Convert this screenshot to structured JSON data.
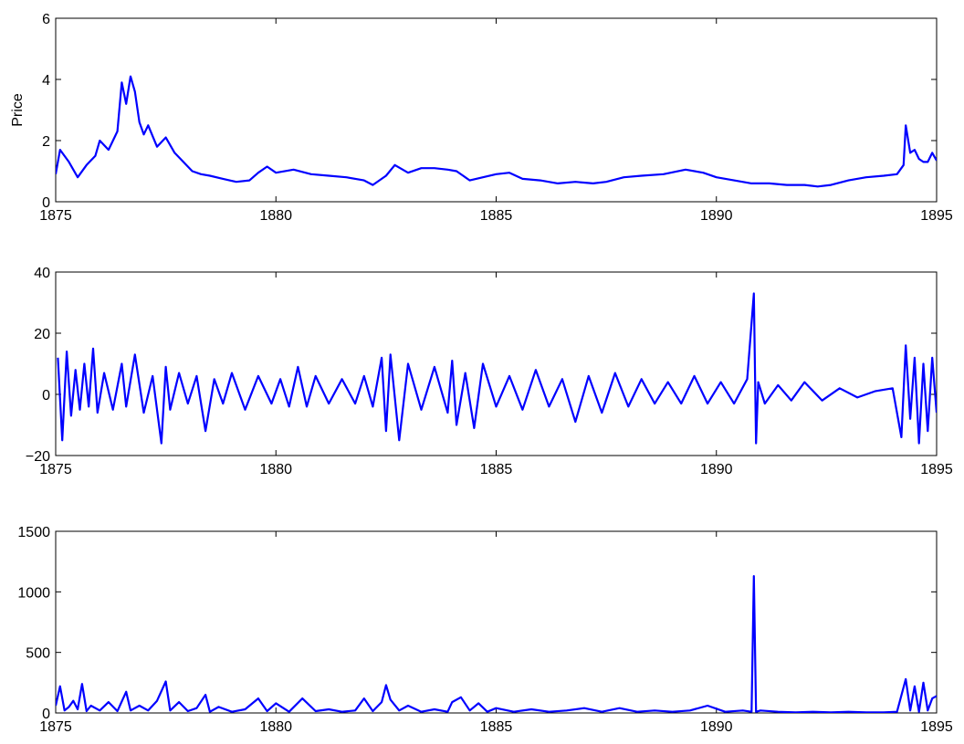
{
  "chart_data": [
    {
      "type": "line",
      "title": "",
      "xlabel": "",
      "ylabel": "Price",
      "xlim": [
        1875,
        1895
      ],
      "ylim": [
        0,
        6
      ],
      "xticks": [
        1875,
        1880,
        1885,
        1890,
        1895
      ],
      "yticks": [
        0,
        2,
        4,
        6
      ],
      "xtick_labels": [
        "1875",
        "1880",
        "1885",
        "1890",
        "1895"
      ],
      "ytick_labels": [
        "0",
        "2",
        "4",
        "6"
      ],
      "grid": false,
      "color": "#0000ff",
      "series": [
        {
          "name": "",
          "x": [
            1875.0,
            1875.1,
            1875.3,
            1875.5,
            1875.7,
            1875.9,
            1876.0,
            1876.2,
            1876.4,
            1876.5,
            1876.6,
            1876.7,
            1876.8,
            1876.9,
            1877.0,
            1877.1,
            1877.3,
            1877.5,
            1877.7,
            1877.9,
            1878.1,
            1878.3,
            1878.5,
            1878.8,
            1879.1,
            1879.4,
            1879.6,
            1879.8,
            1880.0,
            1880.4,
            1880.8,
            1881.2,
            1881.6,
            1882.0,
            1882.2,
            1882.5,
            1882.7,
            1883.0,
            1883.3,
            1883.6,
            1883.9,
            1884.1,
            1884.4,
            1884.7,
            1885.0,
            1885.3,
            1885.6,
            1886.0,
            1886.4,
            1886.8,
            1887.2,
            1887.5,
            1887.9,
            1888.3,
            1888.8,
            1889.3,
            1889.7,
            1890.0,
            1890.4,
            1890.8,
            1891.2,
            1891.6,
            1892.0,
            1892.3,
            1892.6,
            1893.0,
            1893.4,
            1893.8,
            1894.1,
            1894.25,
            1894.3,
            1894.4,
            1894.5,
            1894.6,
            1894.7,
            1894.8,
            1894.9,
            1895.0
          ],
          "y": [
            0.9,
            1.7,
            1.3,
            0.8,
            1.2,
            1.5,
            2.0,
            1.7,
            2.3,
            3.9,
            3.2,
            4.1,
            3.6,
            2.6,
            2.2,
            2.5,
            1.8,
            2.1,
            1.6,
            1.3,
            1.0,
            0.9,
            0.85,
            0.75,
            0.65,
            0.7,
            0.95,
            1.15,
            0.95,
            1.05,
            0.9,
            0.85,
            0.8,
            0.7,
            0.55,
            0.85,
            1.2,
            0.95,
            1.1,
            1.1,
            1.05,
            1.0,
            0.7,
            0.8,
            0.9,
            0.95,
            0.75,
            0.7,
            0.6,
            0.65,
            0.6,
            0.65,
            0.8,
            0.85,
            0.9,
            1.05,
            0.95,
            0.8,
            0.7,
            0.6,
            0.6,
            0.55,
            0.55,
            0.5,
            0.55,
            0.7,
            0.8,
            0.85,
            0.9,
            1.2,
            2.5,
            1.6,
            1.7,
            1.4,
            1.3,
            1.3,
            1.6,
            1.35
          ]
        }
      ]
    },
    {
      "type": "line",
      "title": "",
      "xlabel": "",
      "ylabel": "",
      "xlim": [
        1875,
        1895
      ],
      "ylim": [
        -20,
        40
      ],
      "xticks": [
        1875,
        1880,
        1885,
        1890,
        1895
      ],
      "yticks": [
        -20,
        0,
        20,
        40
      ],
      "xtick_labels": [
        "1875",
        "1880",
        "1885",
        "1890",
        "1895"
      ],
      "ytick_labels": [
        "−20",
        "0",
        "20",
        "40"
      ],
      "grid": false,
      "color": "#0000ff",
      "series": [
        {
          "name": "",
          "x": [
            1875.05,
            1875.15,
            1875.25,
            1875.35,
            1875.45,
            1875.55,
            1875.65,
            1875.75,
            1875.85,
            1875.95,
            1876.1,
            1876.3,
            1876.5,
            1876.6,
            1876.8,
            1877.0,
            1877.2,
            1877.4,
            1877.5,
            1877.6,
            1877.8,
            1878.0,
            1878.2,
            1878.4,
            1878.6,
            1878.8,
            1879.0,
            1879.3,
            1879.6,
            1879.9,
            1880.1,
            1880.3,
            1880.5,
            1880.7,
            1880.9,
            1881.2,
            1881.5,
            1881.8,
            1882.0,
            1882.2,
            1882.4,
            1882.5,
            1882.6,
            1882.8,
            1883.0,
            1883.3,
            1883.6,
            1883.9,
            1884.0,
            1884.1,
            1884.3,
            1884.5,
            1884.7,
            1885.0,
            1885.3,
            1885.6,
            1885.9,
            1886.2,
            1886.5,
            1886.8,
            1887.1,
            1887.4,
            1887.7,
            1888.0,
            1888.3,
            1888.6,
            1888.9,
            1889.2,
            1889.5,
            1889.8,
            1890.1,
            1890.4,
            1890.7,
            1890.85,
            1890.9,
            1890.95,
            1891.1,
            1891.4,
            1891.7,
            1892.0,
            1892.4,
            1892.8,
            1893.2,
            1893.6,
            1894.0,
            1894.2,
            1894.3,
            1894.4,
            1894.5,
            1894.6,
            1894.7,
            1894.8,
            1894.9,
            1895.0
          ],
          "y": [
            12,
            -15,
            14,
            -7,
            8,
            -5,
            10,
            -4,
            15,
            -6,
            7,
            -5,
            10,
            -4,
            13,
            -6,
            6,
            -16,
            9,
            -5,
            7,
            -3,
            6,
            -12,
            5,
            -3,
            7,
            -5,
            6,
            -3,
            5,
            -4,
            9,
            -4,
            6,
            -3,
            5,
            -3,
            6,
            -4,
            12,
            -12,
            13,
            -15,
            10,
            -5,
            9,
            -6,
            11,
            -10,
            7,
            -11,
            10,
            -4,
            6,
            -5,
            8,
            -4,
            5,
            -9,
            6,
            -6,
            7,
            -4,
            5,
            -3,
            4,
            -3,
            6,
            -3,
            4,
            -3,
            5,
            33,
            -16,
            4,
            -3,
            3,
            -2,
            4,
            -2,
            2,
            -1,
            1,
            2,
            -14,
            16,
            -8,
            12,
            -16,
            10,
            -12,
            12,
            -6
          ]
        }
      ]
    },
    {
      "type": "line",
      "title": "",
      "xlabel": "",
      "ylabel": "",
      "xlim": [
        1875,
        1895
      ],
      "ylim": [
        0,
        1500
      ],
      "xticks": [
        1875,
        1880,
        1885,
        1890,
        1895
      ],
      "yticks": [
        0,
        500,
        1000,
        1500
      ],
      "xtick_labels": [
        "1875",
        "1880",
        "1885",
        "1890",
        "1895"
      ],
      "ytick_labels": [
        "0",
        "500",
        "1000",
        "1500"
      ],
      "grid": false,
      "color": "#0000ff",
      "series": [
        {
          "name": "",
          "x": [
            1875.0,
            1875.1,
            1875.2,
            1875.3,
            1875.4,
            1875.5,
            1875.6,
            1875.7,
            1875.8,
            1876.0,
            1876.2,
            1876.4,
            1876.6,
            1876.7,
            1876.9,
            1877.1,
            1877.3,
            1877.5,
            1877.6,
            1877.8,
            1878.0,
            1878.2,
            1878.4,
            1878.5,
            1878.7,
            1879.0,
            1879.3,
            1879.6,
            1879.8,
            1880.0,
            1880.3,
            1880.6,
            1880.9,
            1881.2,
            1881.5,
            1881.8,
            1882.0,
            1882.2,
            1882.4,
            1882.5,
            1882.6,
            1882.8,
            1883.0,
            1883.3,
            1883.6,
            1883.9,
            1884.0,
            1884.2,
            1884.4,
            1884.6,
            1884.8,
            1885.0,
            1885.4,
            1885.8,
            1886.2,
            1886.6,
            1887.0,
            1887.4,
            1887.8,
            1888.2,
            1888.6,
            1889.0,
            1889.4,
            1889.8,
            1890.2,
            1890.6,
            1890.8,
            1890.85,
            1890.9,
            1891.0,
            1891.4,
            1891.8,
            1892.2,
            1892.6,
            1893.0,
            1893.4,
            1893.8,
            1894.1,
            1894.3,
            1894.4,
            1894.5,
            1894.6,
            1894.7,
            1894.8,
            1894.9,
            1895.0
          ],
          "y": [
            60,
            220,
            20,
            50,
            100,
            30,
            240,
            15,
            60,
            20,
            90,
            15,
            175,
            20,
            60,
            20,
            100,
            260,
            20,
            90,
            15,
            40,
            150,
            10,
            50,
            10,
            30,
            120,
            15,
            80,
            10,
            120,
            15,
            30,
            10,
            20,
            120,
            15,
            90,
            230,
            110,
            20,
            60,
            10,
            30,
            10,
            90,
            130,
            20,
            80,
            10,
            40,
            10,
            30,
            10,
            20,
            40,
            10,
            40,
            10,
            20,
            10,
            20,
            60,
            10,
            20,
            10,
            1130,
            10,
            20,
            10,
            5,
            10,
            5,
            10,
            5,
            5,
            10,
            280,
            20,
            220,
            10,
            250,
            20,
            120,
            140
          ]
        }
      ]
    }
  ]
}
